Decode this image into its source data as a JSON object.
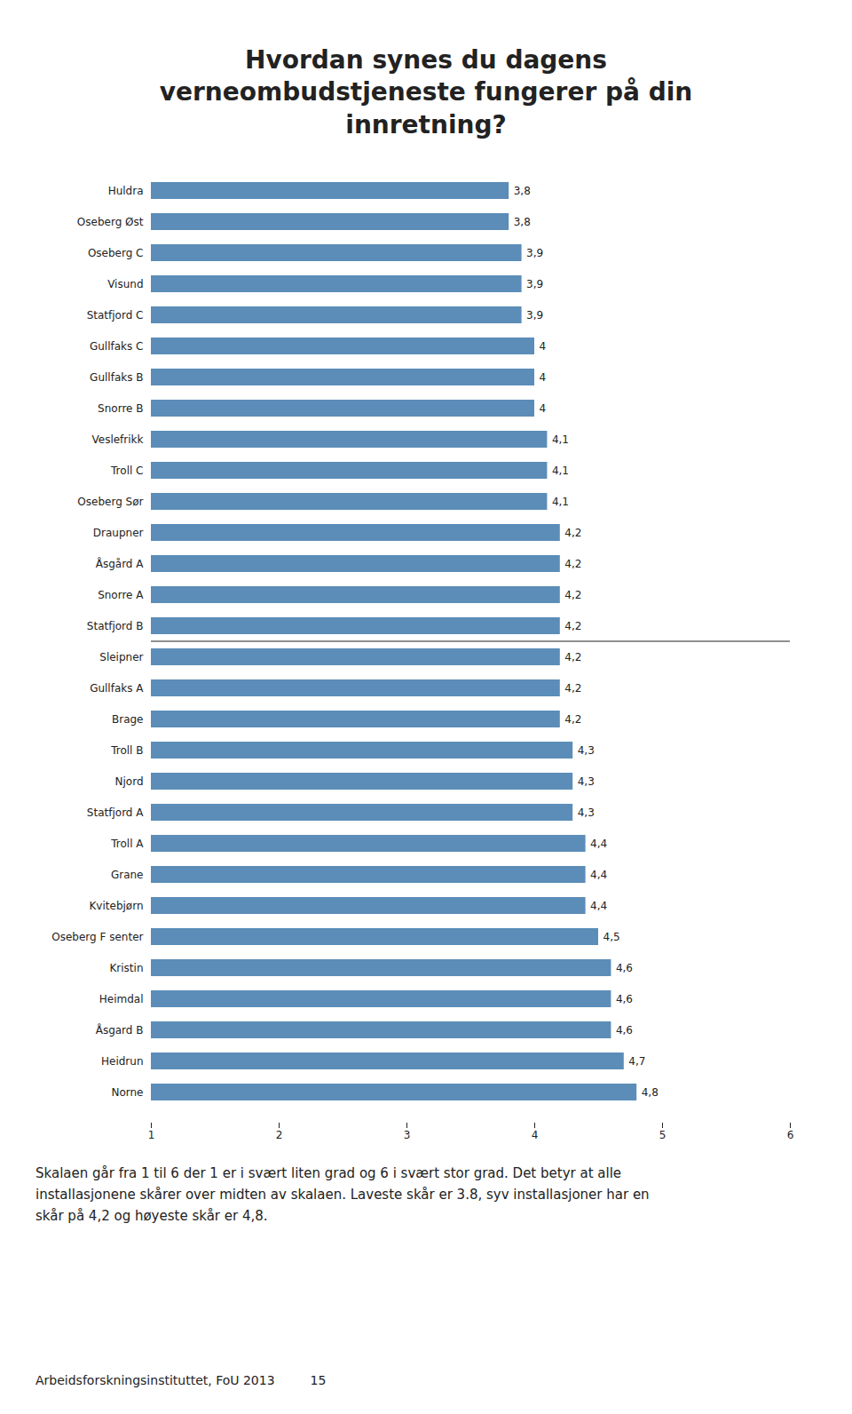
{
  "chart_data": {
    "type": "bar",
    "orientation": "horizontal",
    "title": "Hvordan synes du dagens\nverneombudstjeneste fungerer på din\ninnretning?",
    "categories": [
      "Huldra",
      "Oseberg Øst",
      "Oseberg C",
      "Visund",
      "Statfjord C",
      "Gullfaks C",
      "Gullfaks B",
      "Snorre B",
      "Veslefrikk",
      "Troll C",
      "Oseberg Sør",
      "Draupner",
      "Åsgård A",
      "Snorre A",
      "Statfjord B",
      "Sleipner",
      "Gullfaks A",
      "Brage",
      "Troll B",
      "Njord",
      "Statfjord A",
      "Troll A",
      "Grane",
      "Kvitebjørn",
      "Oseberg F senter",
      "Kristin",
      "Heimdal",
      "Åsgard B",
      "Heidrun",
      "Norne"
    ],
    "values": [
      3.8,
      3.8,
      3.9,
      3.9,
      3.9,
      4.0,
      4.0,
      4.0,
      4.1,
      4.1,
      4.1,
      4.2,
      4.2,
      4.2,
      4.2,
      4.2,
      4.2,
      4.2,
      4.3,
      4.3,
      4.3,
      4.4,
      4.4,
      4.4,
      4.5,
      4.6,
      4.6,
      4.6,
      4.7,
      4.8
    ],
    "value_labels": [
      "3,8",
      "3,8",
      "3,9",
      "3,9",
      "3,9",
      "4",
      "4",
      "4",
      "4,1",
      "4,1",
      "4,1",
      "4,2",
      "4,2",
      "4,2",
      "4,2",
      "4,2",
      "4,2",
      "4,2",
      "4,3",
      "4,3",
      "4,3",
      "4,4",
      "4,4",
      "4,4",
      "4,5",
      "4,6",
      "4,6",
      "4,6",
      "4,7",
      "4,8"
    ],
    "data_labels": true,
    "color": "#5B8DB8",
    "xlim": [
      1,
      6
    ],
    "xticks": [
      1,
      2,
      3,
      4,
      5,
      6
    ],
    "grid": false,
    "caption": "Skalaen går fra 1 til 6 der 1 er i svært liten grad og 6 i svært stor grad. Det betyr at alle\ninstallasjonene skårer over midten av skalaen. Laveste skår er 3.8, syv installasjoner har en\nskår på 4,2 og høyeste skår er 4,8.",
    "annotations": [
      "Arbeidsforskningsinstituttet, FoU 2013",
      "15"
    ]
  }
}
